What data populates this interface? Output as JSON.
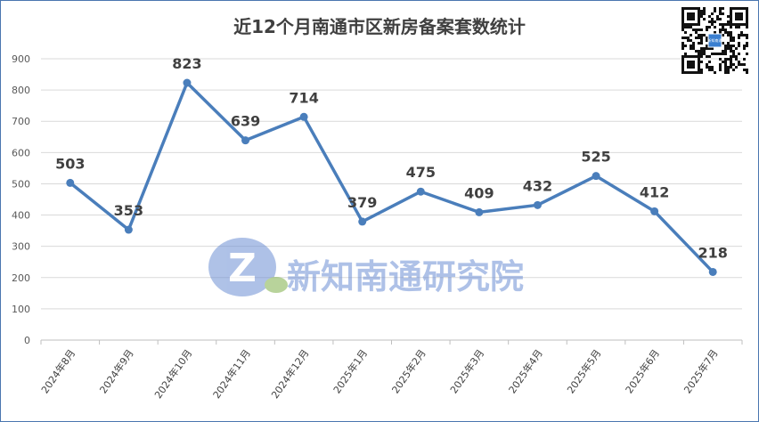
{
  "chart_data": {
    "type": "line",
    "title": "近12个月南通市区新房备案套数统计",
    "categories": [
      "2024年8月",
      "2024年9月",
      "2024年10月",
      "2024年11月",
      "2024年12月",
      "2025年1月",
      "2025年2月",
      "2025年3月",
      "2025年4月",
      "2025年5月",
      "2025年6月",
      "2025年7月"
    ],
    "values": [
      503,
      353,
      823,
      639,
      714,
      379,
      475,
      409,
      432,
      525,
      412,
      218
    ],
    "ylim": [
      0,
      900
    ],
    "yticks": [
      0,
      100,
      200,
      300,
      400,
      500,
      600,
      700,
      800,
      900
    ],
    "grid": true,
    "data_labels": true,
    "colors": {
      "line": "#4a7ebb",
      "grid": "#d9d9d9",
      "label": "#404040"
    }
  },
  "watermark": {
    "text": "新知南通研究院",
    "logo_letter": "Z"
  },
  "qr_code": {
    "center_text": "新知南通"
  }
}
